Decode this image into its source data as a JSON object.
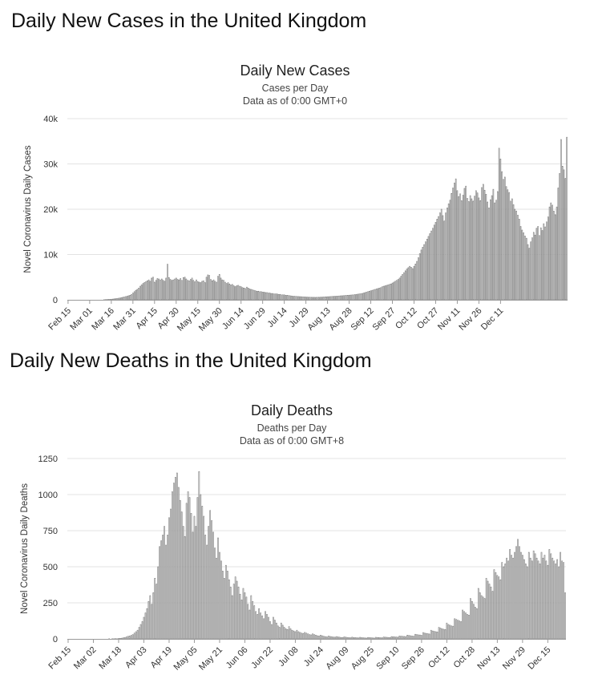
{
  "page": {
    "cases_heading": "Daily New Cases in the United Kingdom",
    "deaths_heading": "Daily New Deaths in the United Kingdom"
  },
  "chart_data": [
    {
      "type": "bar",
      "title": "Daily New Cases",
      "subtitle": "Cases per Day",
      "note": "Data as of 0:00 GMT+0",
      "ylabel": "Novel Coronavirus Daily Cases",
      "xlabel": "",
      "ylim": [
        0,
        40000
      ],
      "yticks": [
        0,
        10000,
        20000,
        30000,
        40000
      ],
      "ytick_labels": [
        "0",
        "10k",
        "20k",
        "30k",
        "40k"
      ],
      "x_tick_labels": [
        "Feb 15",
        "Mar 01",
        "Mar 16",
        "Mar 31",
        "Apr 15",
        "Apr 30",
        "May 15",
        "May 30",
        "Jun 14",
        "Jun 29",
        "Jul 14",
        "Jul 29",
        "Aug 13",
        "Aug 28",
        "Sep 12",
        "Sep 27",
        "Oct 12",
        "Oct 27",
        "Nov 11",
        "Nov 26",
        "Dec 11"
      ],
      "tick_every_n_days": 15,
      "grid": true,
      "start_date": "Feb 15",
      "values": [
        0,
        0,
        0,
        0,
        0,
        0,
        0,
        0,
        0,
        0,
        0,
        0,
        0,
        0,
        0,
        0,
        0,
        0,
        0,
        0,
        0,
        0,
        0,
        0,
        0,
        30,
        50,
        70,
        90,
        110,
        130,
        160,
        210,
        250,
        300,
        350,
        400,
        480,
        560,
        640,
        720,
        800,
        900,
        1000,
        1200,
        1500,
        1800,
        2100,
        2300,
        2600,
        3000,
        3300,
        3600,
        3800,
        4000,
        4200,
        4400,
        4100,
        4800,
        5000,
        3900,
        4300,
        4700,
        4600,
        4400,
        4600,
        4300,
        4100,
        4800,
        7860,
        4900,
        4500,
        4300,
        4400,
        4600,
        4800,
        4500,
        4400,
        4700,
        4300,
        4900,
        5000,
        4600,
        4300,
        4200,
        4500,
        4800,
        4300,
        4000,
        4400,
        4000,
        3900,
        3800,
        4100,
        4200,
        3800,
        5000,
        5500,
        5400,
        4500,
        4200,
        4400,
        4100,
        3900,
        5200,
        5600,
        4800,
        4400,
        4300,
        3900,
        3600,
        3800,
        3500,
        3300,
        3400,
        3100,
        2900,
        3100,
        3200,
        3000,
        2900,
        2700,
        2600,
        2500,
        2800,
        2600,
        2400,
        2300,
        2200,
        2100,
        2000,
        1900,
        1900,
        1800,
        1800,
        1700,
        1700,
        1600,
        1600,
        1500,
        1500,
        1400,
        1400,
        1300,
        1300,
        1300,
        1200,
        1200,
        1100,
        1100,
        1100,
        1000,
        1000,
        950,
        900,
        850,
        800,
        780,
        760,
        740,
        720,
        700,
        680,
        660,
        640,
        620,
        600,
        580,
        570,
        560,
        560,
        550,
        550,
        560,
        570,
        580,
        600,
        620,
        640,
        660,
        680,
        700,
        720,
        740,
        760,
        780,
        800,
        820,
        850,
        880,
        900,
        920,
        950,
        980,
        1000,
        1020,
        1050,
        1080,
        1100,
        1150,
        1200,
        1250,
        1300,
        1350,
        1400,
        1500,
        1600,
        1700,
        1800,
        1900,
        2000,
        2100,
        2200,
        2300,
        2400,
        2500,
        2600,
        2700,
        2900,
        3000,
        3100,
        3200,
        3300,
        3400,
        3500,
        3700,
        3900,
        4100,
        4300,
        4500,
        4800,
        5200,
        5600,
        6000,
        6400,
        6800,
        7100,
        7400,
        7200,
        6900,
        7400,
        7900,
        8500,
        9300,
        10200,
        11000,
        11600,
        12200,
        12800,
        13400,
        14000,
        14600,
        15200,
        15800,
        16500,
        17100,
        17800,
        18400,
        19200,
        20000,
        18600,
        17400,
        19200,
        20300,
        21200,
        22000,
        23500,
        24700,
        25800,
        26700,
        24100,
        22800,
        23400,
        21900,
        23100,
        24600,
        25100,
        22400,
        21700,
        23000,
        22300,
        21800,
        22900,
        24100,
        23600,
        22500,
        21900,
        24800,
        25500,
        24200,
        23300,
        21600,
        20300,
        22100,
        23000,
        24400,
        21400,
        22000,
        23900,
        33470,
        31100,
        28300,
        26600,
        27100,
        25000,
        24300,
        23700,
        21800,
        22300,
        21000,
        20000,
        19600,
        18700,
        17800,
        16200,
        15400,
        14800,
        14100,
        13600,
        12200,
        11400,
        12800,
        13700,
        14900,
        14300,
        15800,
        16200,
        14200,
        15900,
        15300,
        16800,
        16100,
        17200,
        18300,
        20500,
        21400,
        20900,
        19600,
        18800,
        20500,
        24700,
        27900,
        35400,
        29500,
        28700,
        26800,
        35900
      ]
    },
    {
      "type": "bar",
      "title": "Daily Deaths",
      "subtitle": "Deaths per Day",
      "note": "Data as of 0:00 GMT+8",
      "ylabel": "Novel Coronavirus Daily Deaths",
      "xlabel": "",
      "ylim": [
        0,
        1250
      ],
      "yticks": [
        0,
        250,
        500,
        750,
        1000,
        1250
      ],
      "ytick_labels": [
        "0",
        "250",
        "500",
        "750",
        "1000",
        "1250"
      ],
      "x_tick_labels": [
        "Feb 15",
        "Mar 02",
        "Mar 18",
        "Apr 03",
        "Apr 19",
        "May 05",
        "May 21",
        "Jun 06",
        "Jun 22",
        "Jul 08",
        "Jul 24",
        "Aug 09",
        "Aug 25",
        "Sep 10",
        "Sep 26",
        "Oct 12",
        "Oct 28",
        "Nov 13",
        "Nov 29",
        "Dec 15"
      ],
      "tick_every_n_days": 16,
      "grid": true,
      "start_date": "Feb 15",
      "values": [
        0,
        0,
        0,
        0,
        0,
        0,
        0,
        0,
        0,
        0,
        0,
        0,
        0,
        0,
        0,
        0,
        0,
        0,
        0,
        0,
        0,
        0,
        0,
        0,
        0,
        0,
        1,
        0,
        1,
        1,
        2,
        1,
        3,
        4,
        5,
        8,
        10,
        14,
        18,
        20,
        25,
        30,
        40,
        50,
        60,
        80,
        100,
        120,
        150,
        180,
        210,
        260,
        300,
        240,
        320,
        420,
        380,
        500,
        640,
        680,
        720,
        780,
        650,
        720,
        840,
        900,
        1020,
        1080,
        1120,
        1150,
        1050,
        960,
        880,
        780,
        710,
        940,
        1020,
        980,
        870,
        740,
        850,
        780,
        980,
        1160,
        1000,
        920,
        850,
        720,
        650,
        780,
        890,
        820,
        740,
        630,
        560,
        700,
        600,
        540,
        470,
        420,
        510,
        470,
        410,
        360,
        300,
        380,
        430,
        400,
        360,
        310,
        270,
        350,
        320,
        290,
        240,
        200,
        300,
        260,
        230,
        190,
        170,
        210,
        180,
        160,
        140,
        190,
        170,
        150,
        120,
        100,
        150,
        130,
        110,
        90,
        80,
        110,
        95,
        80,
        70,
        65,
        85,
        70,
        60,
        55,
        50,
        60,
        50,
        45,
        40,
        38,
        45,
        40,
        35,
        30,
        28,
        35,
        30,
        26,
        22,
        20,
        26,
        22,
        18,
        16,
        14,
        20,
        17,
        15,
        13,
        12,
        16,
        14,
        12,
        10,
        10,
        14,
        12,
        10,
        9,
        8,
        12,
        10,
        9,
        8,
        7,
        11,
        9,
        8,
        7,
        6,
        10,
        9,
        8,
        7,
        6,
        11,
        10,
        9,
        8,
        8,
        13,
        12,
        11,
        10,
        10,
        16,
        15,
        14,
        13,
        12,
        20,
        19,
        18,
        17,
        16,
        26,
        24,
        22,
        20,
        19,
        32,
        30,
        28,
        27,
        25,
        44,
        40,
        38,
        36,
        34,
        60,
        55,
        52,
        50,
        48,
        80,
        75,
        70,
        67,
        65,
        110,
        100,
        95,
        90,
        88,
        140,
        135,
        130,
        125,
        120,
        200,
        190,
        180,
        170,
        165,
        280,
        260,
        240,
        220,
        210,
        350,
        320,
        300,
        290,
        280,
        420,
        400,
        380,
        360,
        330,
        480,
        460,
        440,
        430,
        410,
        530,
        500,
        520,
        560,
        540,
        620,
        580,
        560,
        600,
        640,
        690,
        640,
        600,
        580,
        550,
        520,
        500,
        600,
        560,
        540,
        610,
        590,
        560,
        540,
        520,
        600,
        560,
        580,
        540,
        510,
        620,
        590,
        560,
        540,
        520,
        550,
        500,
        600,
        540,
        530,
        320
      ]
    }
  ]
}
